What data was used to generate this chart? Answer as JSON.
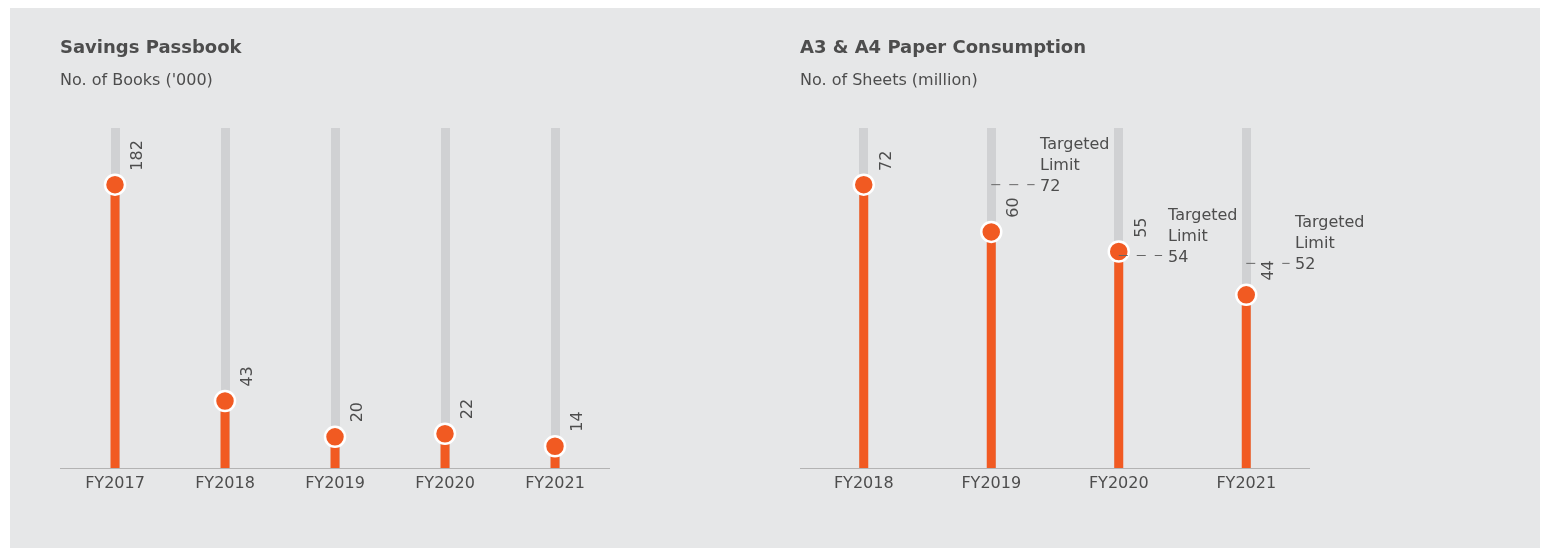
{
  "chart_data": [
    {
      "type": "lollipop",
      "title": "Savings Passbook",
      "subtitle": "No. of Books ('000)",
      "categories": [
        "FY2017",
        "FY2018",
        "FY2019",
        "FY2020",
        "FY2021"
      ],
      "values": [
        182,
        43,
        20,
        22,
        14
      ],
      "color": "#f15a22",
      "data_labels": true,
      "grid": "x"
    },
    {
      "type": "lollipop",
      "title": "A3 & A4 Paper Consumption",
      "subtitle": "No. of Sheets (million)",
      "categories": [
        "FY2018",
        "FY2019",
        "FY2020",
        "FY2021"
      ],
      "values": [
        72,
        60,
        55,
        44
      ],
      "color": "#f15a22",
      "data_labels": true,
      "grid": "x",
      "ref_lines": [
        {
          "axis": "y",
          "value": 72,
          "label": "Targeted Limit 72",
          "line_style": "dashed"
        },
        {
          "axis": "y",
          "value": 54,
          "label": "Targeted Limit 54",
          "line_style": "dashed"
        },
        {
          "axis": "y",
          "value": 52,
          "label": "Targeted Limit 52",
          "line_style": "dashed"
        }
      ]
    }
  ]
}
